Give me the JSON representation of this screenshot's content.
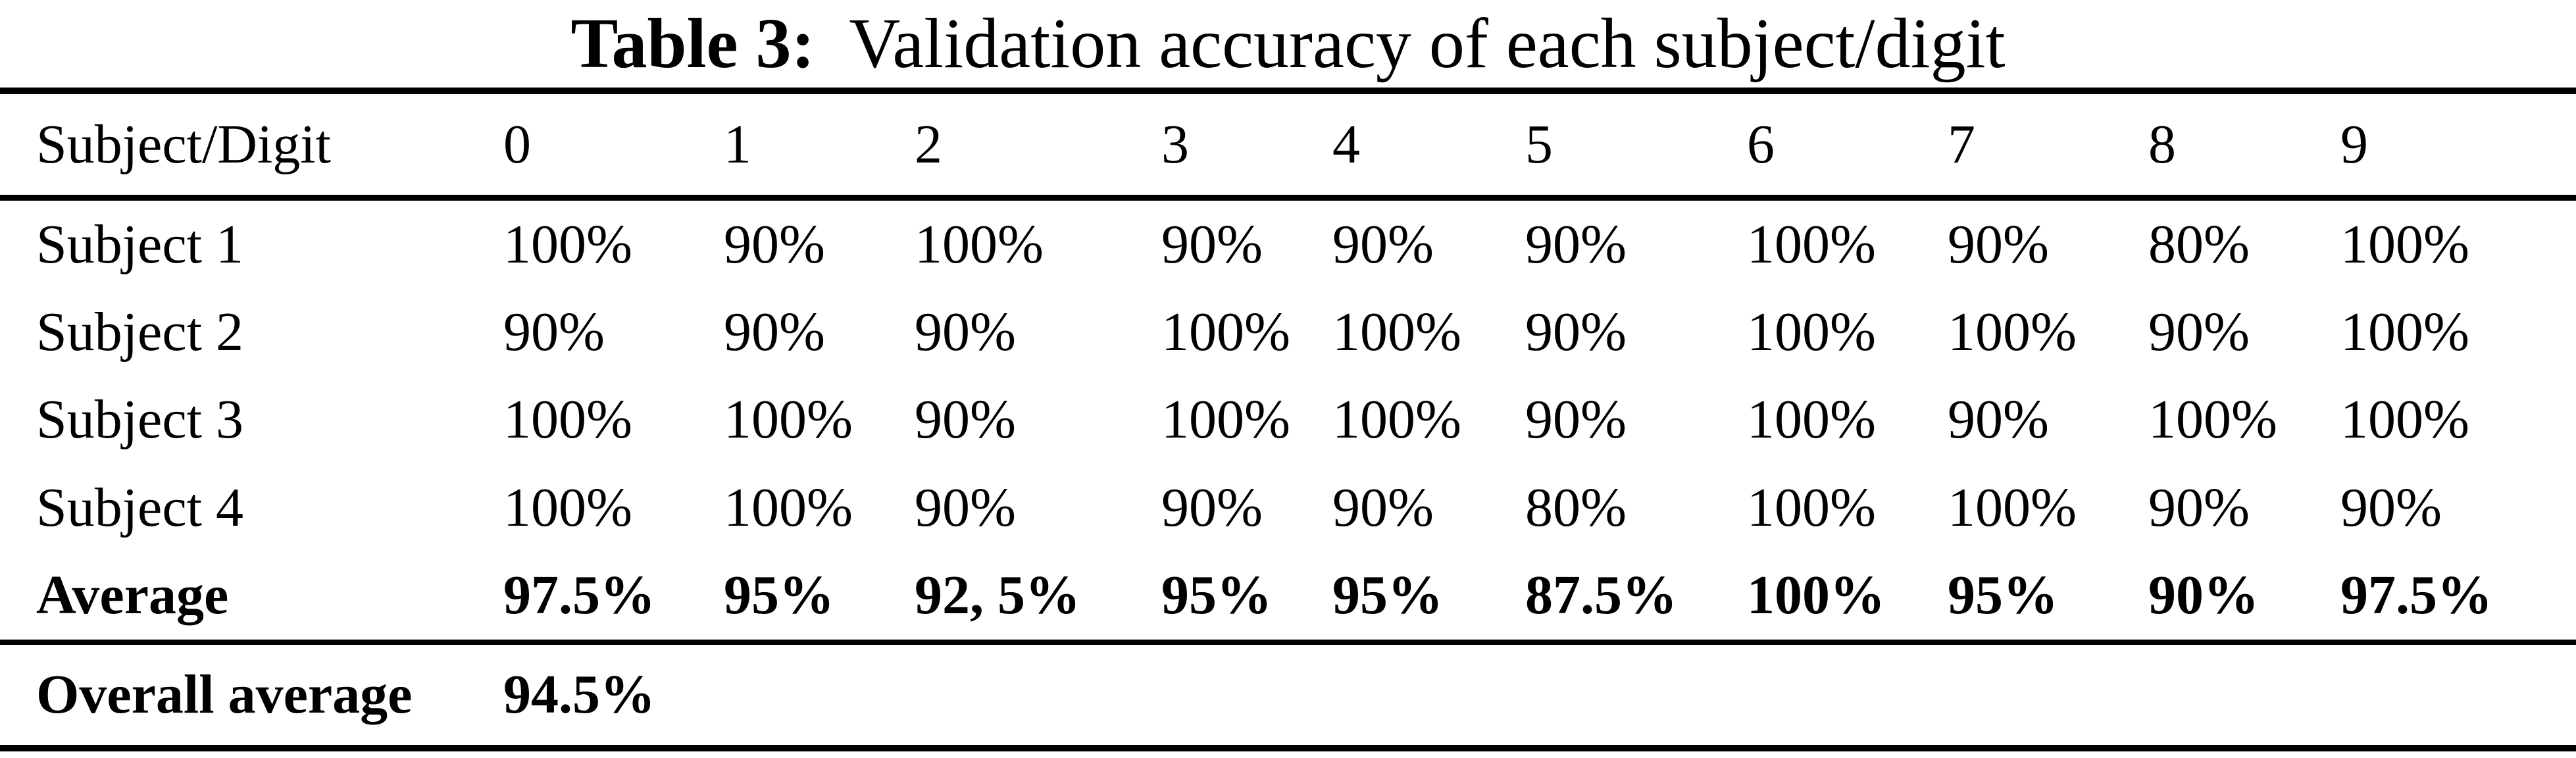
{
  "title": {
    "tag": "Table 3:",
    "text": "Validation accuracy of each subject/digit"
  },
  "table": {
    "header": {
      "label": "Subject/Digit",
      "digits": [
        "0",
        "1",
        "2",
        "3",
        "4",
        "5",
        "6",
        "7",
        "8",
        "9"
      ]
    },
    "rows": [
      {
        "label": "Subject 1",
        "values": [
          "100%",
          "90%",
          "100%",
          "90%",
          "90%",
          "90%",
          "100%",
          "90%",
          "80%",
          "100%"
        ]
      },
      {
        "label": "Subject 2",
        "values": [
          "90%",
          "90%",
          "90%",
          "100%",
          "100%",
          "90%",
          "100%",
          "100%",
          "90%",
          "100%"
        ]
      },
      {
        "label": "Subject 3",
        "values": [
          "100%",
          "100%",
          "90%",
          "100%",
          "100%",
          "90%",
          "100%",
          "90%",
          "100%",
          "100%"
        ]
      },
      {
        "label": "Subject 4",
        "values": [
          "100%",
          "100%",
          "90%",
          "90%",
          "90%",
          "80%",
          "100%",
          "100%",
          "90%",
          "90%"
        ]
      },
      {
        "label": "Average",
        "values": [
          "97.5%",
          "95%",
          "92, 5%",
          "95%",
          "95%",
          "87.5%",
          "100%",
          "95%",
          "90%",
          "97.5%"
        ]
      }
    ],
    "footer": {
      "label": "Overall average",
      "value": "94.5%"
    }
  },
  "colors": {
    "text": "#000000",
    "background": "#ffffff",
    "rule": "#000000"
  }
}
